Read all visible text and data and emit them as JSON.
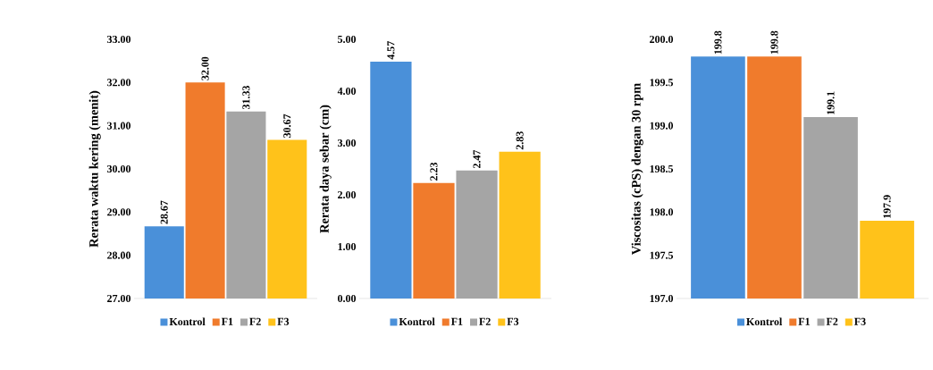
{
  "chart_data": [
    {
      "type": "bar",
      "ylabel": "Rerata waktu kering (menit)",
      "categories": [
        null
      ],
      "ylim": [
        27,
        33
      ],
      "yticks": [
        {
          "value": 27,
          "label": "27.00"
        },
        {
          "value": 28,
          "label": "28.00"
        },
        {
          "value": 29,
          "label": "29.00"
        },
        {
          "value": 30,
          "label": "30.00"
        },
        {
          "value": 31,
          "label": "31.00"
        },
        {
          "value": 32,
          "label": "32.00"
        },
        {
          "value": 33,
          "label": "33.00"
        }
      ],
      "legend": "bottom",
      "grid": false,
      "series": [
        {
          "name": "Kontrol",
          "color": "#4a90d9",
          "values": [
            28.67
          ],
          "value_labels": [
            "28.67"
          ]
        },
        {
          "name": "F1",
          "color": "#f07b2c",
          "values": [
            32.0
          ],
          "value_labels": [
            "32.00"
          ]
        },
        {
          "name": "F2",
          "color": "#a5a5a5",
          "values": [
            31.33
          ],
          "value_labels": [
            "31.33"
          ]
        },
        {
          "name": "F3",
          "color": "#ffc21a",
          "values": [
            30.67
          ],
          "value_labels": [
            "30.67"
          ]
        }
      ]
    },
    {
      "type": "bar",
      "ylabel": "Rerata daya sebar (cm)",
      "categories": [
        null
      ],
      "ylim": [
        0,
        5
      ],
      "yticks": [
        {
          "value": 0,
          "label": "0.00"
        },
        {
          "value": 1,
          "label": "1.00"
        },
        {
          "value": 2,
          "label": "2.00"
        },
        {
          "value": 3,
          "label": "3.00"
        },
        {
          "value": 4,
          "label": "4.00"
        },
        {
          "value": 5,
          "label": "5.00"
        }
      ],
      "legend": "bottom",
      "grid": false,
      "series": [
        {
          "name": "Kontrol",
          "color": "#4a90d9",
          "values": [
            4.57
          ],
          "value_labels": [
            "4.57"
          ]
        },
        {
          "name": "F1",
          "color": "#f07b2c",
          "values": [
            2.23
          ],
          "value_labels": [
            "2.23"
          ]
        },
        {
          "name": "F2",
          "color": "#a5a5a5",
          "values": [
            2.47
          ],
          "value_labels": [
            "2.47"
          ]
        },
        {
          "name": "F3",
          "color": "#ffc21a",
          "values": [
            2.83
          ],
          "value_labels": [
            "2.83"
          ]
        }
      ]
    },
    {
      "type": "bar",
      "ylabel": "Viscositas (cPS) dengan 30 rpm",
      "categories": [
        null
      ],
      "ylim": [
        197,
        200
      ],
      "yticks": [
        {
          "value": 197,
          "label": "197.0"
        },
        {
          "value": 197.5,
          "label": "197.5"
        },
        {
          "value": 198,
          "label": "198.0"
        },
        {
          "value": 198.5,
          "label": "198.5"
        },
        {
          "value": 199,
          "label": "199.0"
        },
        {
          "value": 199.5,
          "label": "199.5"
        },
        {
          "value": 200,
          "label": "200.0"
        }
      ],
      "legend": "bottom",
      "grid": false,
      "series": [
        {
          "name": "Kontrol",
          "color": "#4a90d9",
          "values": [
            199.8
          ],
          "value_labels": [
            "199.8"
          ]
        },
        {
          "name": "F1",
          "color": "#f07b2c",
          "values": [
            199.8
          ],
          "value_labels": [
            "199.8"
          ]
        },
        {
          "name": "F2",
          "color": "#a5a5a5",
          "values": [
            199.1
          ],
          "value_labels": [
            "199.1"
          ]
        },
        {
          "name": "F3",
          "color": "#ffc21a",
          "values": [
            197.9
          ],
          "value_labels": [
            "197.9"
          ]
        }
      ]
    }
  ]
}
